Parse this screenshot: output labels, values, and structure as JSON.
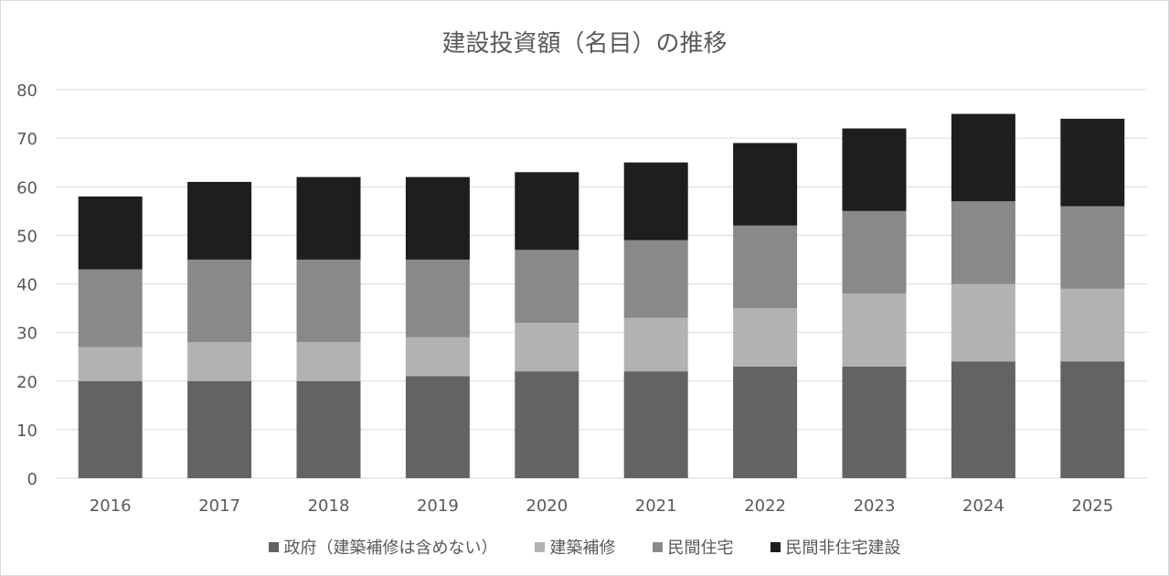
{
  "chart_data": {
    "type": "bar",
    "stacked": true,
    "title": "建設投資額（名目）の推移",
    "xlabel": "",
    "ylabel": "",
    "ylim": [
      0,
      80
    ],
    "yticks": [
      "0",
      "10",
      "20",
      "30",
      "40",
      "50",
      "60",
      "70",
      "80"
    ],
    "grid": true,
    "legend_position": "bottom",
    "categories": [
      "2016",
      "2017",
      "2018",
      "2019",
      "2020",
      "2021",
      "2022",
      "2023",
      "2024",
      "2025"
    ],
    "series": [
      {
        "name": "政府（建築補修は含めない）",
        "color": "#636363",
        "values": [
          20,
          20,
          20,
          21,
          22,
          22,
          23,
          23,
          24,
          24
        ]
      },
      {
        "name": "建築補修",
        "color": "#b2b2b2",
        "values": [
          7,
          8,
          8,
          8,
          10,
          11,
          12,
          15,
          16,
          15
        ]
      },
      {
        "name": "民間住宅",
        "color": "#898989",
        "values": [
          16,
          17,
          17,
          16,
          15,
          16,
          17,
          17,
          17,
          17
        ]
      },
      {
        "name": "民間非住宅建設",
        "color": "#1e1e1e",
        "values": [
          15,
          16,
          17,
          17,
          16,
          16,
          17,
          17,
          18,
          18
        ]
      }
    ]
  }
}
